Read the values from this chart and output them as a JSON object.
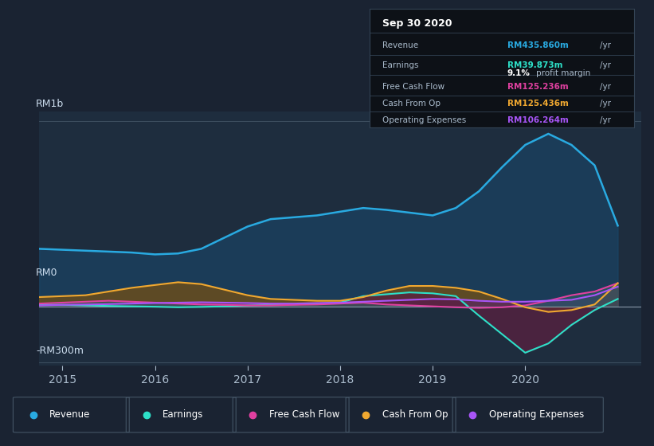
{
  "background_color": "#1a2332",
  "plot_bg_color": "#1e2d3e",
  "x_ticks": [
    2015,
    2016,
    2017,
    2018,
    2019,
    2020
  ],
  "x_range": [
    2014.75,
    2021.25
  ],
  "y_range": [
    -320,
    1050
  ],
  "revenue_color": "#29aae1",
  "earnings_color": "#2de0c8",
  "fcf_color": "#e040a0",
  "cashfromop_color": "#f0a830",
  "opex_color": "#a855f7",
  "legend_items": [
    {
      "label": "Revenue",
      "color": "#29aae1"
    },
    {
      "label": "Earnings",
      "color": "#2de0c8"
    },
    {
      "label": "Free Cash Flow",
      "color": "#e040a0"
    },
    {
      "label": "Cash From Op",
      "color": "#f0a830"
    },
    {
      "label": "Operating Expenses",
      "color": "#a855f7"
    }
  ],
  "revenue_x": [
    2014.75,
    2015.0,
    2015.25,
    2015.5,
    2015.75,
    2016.0,
    2016.25,
    2016.5,
    2016.75,
    2017.0,
    2017.25,
    2017.5,
    2017.75,
    2018.0,
    2018.25,
    2018.5,
    2018.75,
    2019.0,
    2019.25,
    2019.5,
    2019.75,
    2020.0,
    2020.25,
    2020.5,
    2020.75,
    2021.0
  ],
  "revenue_y": [
    310,
    305,
    300,
    295,
    290,
    280,
    285,
    310,
    370,
    430,
    470,
    480,
    490,
    510,
    530,
    520,
    505,
    490,
    530,
    620,
    750,
    870,
    930,
    870,
    760,
    435
  ],
  "earnings_x": [
    2014.75,
    2015.0,
    2015.25,
    2015.5,
    2015.75,
    2016.0,
    2016.25,
    2016.5,
    2016.75,
    2017.0,
    2017.25,
    2017.5,
    2017.75,
    2018.0,
    2018.25,
    2018.5,
    2018.75,
    2019.0,
    2019.25,
    2019.5,
    2019.75,
    2020.0,
    2020.25,
    2020.5,
    2020.75,
    2021.0
  ],
  "earnings_y": [
    10,
    8,
    5,
    2,
    0,
    -2,
    -5,
    -3,
    0,
    5,
    8,
    10,
    15,
    20,
    55,
    65,
    75,
    70,
    55,
    -50,
    -150,
    -250,
    -200,
    -100,
    -20,
    40
  ],
  "fcf_x": [
    2014.75,
    2015.0,
    2015.25,
    2015.5,
    2015.75,
    2016.0,
    2016.25,
    2016.5,
    2016.75,
    2017.0,
    2017.25,
    2017.5,
    2017.75,
    2018.0,
    2018.25,
    2018.5,
    2018.75,
    2019.0,
    2019.25,
    2019.5,
    2019.75,
    2020.0,
    2020.25,
    2020.5,
    2020.75,
    2021.0
  ],
  "fcf_y": [
    15,
    20,
    25,
    30,
    25,
    20,
    15,
    10,
    8,
    5,
    5,
    8,
    10,
    15,
    20,
    10,
    5,
    0,
    -5,
    -8,
    -5,
    5,
    30,
    60,
    80,
    125
  ],
  "cashfromop_x": [
    2014.75,
    2015.0,
    2015.25,
    2015.5,
    2015.75,
    2016.0,
    2016.25,
    2016.5,
    2016.75,
    2017.0,
    2017.25,
    2017.5,
    2017.75,
    2018.0,
    2018.25,
    2018.5,
    2018.75,
    2019.0,
    2019.25,
    2019.5,
    2019.75,
    2020.0,
    2020.25,
    2020.5,
    2020.75,
    2021.0
  ],
  "cashfromop_y": [
    50,
    55,
    60,
    80,
    100,
    115,
    130,
    120,
    90,
    60,
    40,
    35,
    30,
    30,
    50,
    85,
    110,
    110,
    100,
    80,
    40,
    -5,
    -30,
    -20,
    10,
    125
  ],
  "opex_x": [
    2014.75,
    2015.0,
    2015.25,
    2015.5,
    2015.75,
    2016.0,
    2016.25,
    2016.5,
    2016.75,
    2017.0,
    2017.25,
    2017.5,
    2017.75,
    2018.0,
    2018.25,
    2018.5,
    2018.75,
    2019.0,
    2019.25,
    2019.5,
    2019.75,
    2020.0,
    2020.25,
    2020.5,
    2020.75,
    2021.0
  ],
  "opex_y": [
    5,
    8,
    10,
    12,
    15,
    18,
    20,
    22,
    20,
    18,
    15,
    15,
    18,
    20,
    25,
    30,
    35,
    40,
    38,
    30,
    25,
    25,
    30,
    35,
    60,
    106
  ],
  "tooltip_rows": [
    {
      "label": "Revenue",
      "value": "RM435.860m",
      "color": "#29aae1"
    },
    {
      "label": "Earnings",
      "value": "RM39.873m",
      "color": "#2de0c8"
    },
    {
      "label": "Free Cash Flow",
      "value": "RM125.236m",
      "color": "#e040a0"
    },
    {
      "label": "Cash From Op",
      "value": "RM125.436m",
      "color": "#f0a830"
    },
    {
      "label": "Operating Expenses",
      "value": "RM106.264m",
      "color": "#a855f7"
    }
  ],
  "tooltip_date": "Sep 30 2020",
  "profit_margin": "9.1%"
}
